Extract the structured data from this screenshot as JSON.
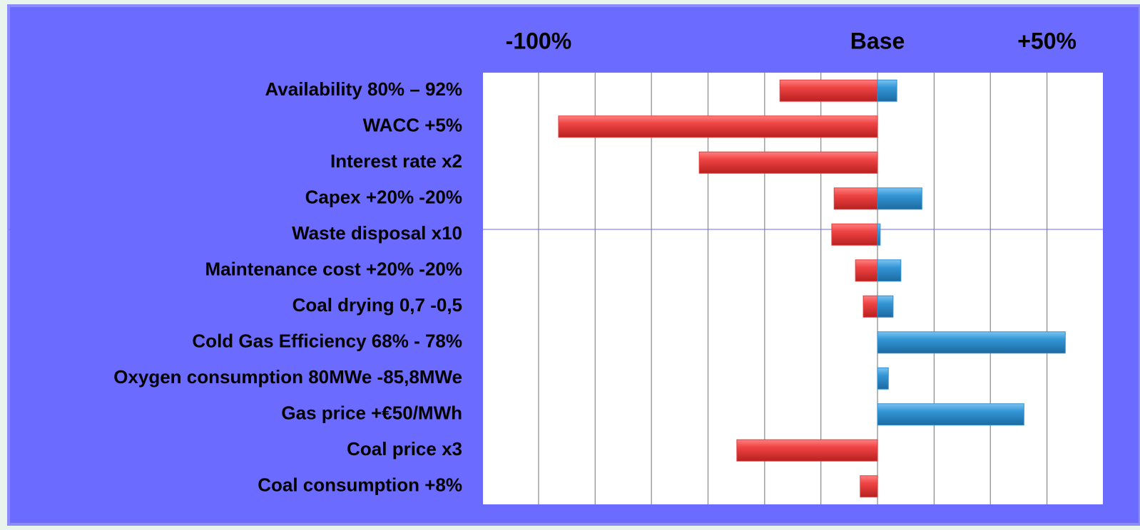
{
  "chart_data": {
    "type": "tornado",
    "categories": [
      "Availability   80% – 92%",
      "WACC   +5%",
      "Interest rate   x2",
      "Capex   +20% -20%",
      "Waste disposal   x10 ",
      "Maintenance cost   +20% -20%",
      "Coal drying   0,7 -0,5",
      "Cold Gas Efficiency   68% - 78%",
      "Oxygen consumption   80MWe -85,8MWe",
      "Gas price   +€50/MWh",
      "Coal price   x3",
      "Coal consumption   +8%"
    ],
    "series": [
      {
        "color": "#e83c3c",
        "values": [
          -28.8,
          -94.1,
          -52.6,
          -12.8,
          -13.5,
          -6.5,
          -4.2,
          null,
          null,
          null,
          -41.5,
          -5.1
        ]
      },
      {
        "color": "#2e8fd0",
        "values": [
          5.7,
          null,
          null,
          13.1,
          0.8,
          6.9,
          4.6,
          55.4,
          3.2,
          43.2,
          null,
          null
        ]
      }
    ],
    "xlim": [
      -116.4,
      66.5
    ],
    "xticks": [
      {
        "value": -100,
        "label": "-100%"
      },
      {
        "value": 0,
        "label": "Base"
      },
      {
        "value": 50,
        "label": "+50%"
      }
    ],
    "minor_xticks": [
      -100,
      -83.3,
      -66.7,
      -50,
      -33.3,
      -16.7,
      0,
      16.7,
      33.3,
      50
    ],
    "grid": true
  }
}
